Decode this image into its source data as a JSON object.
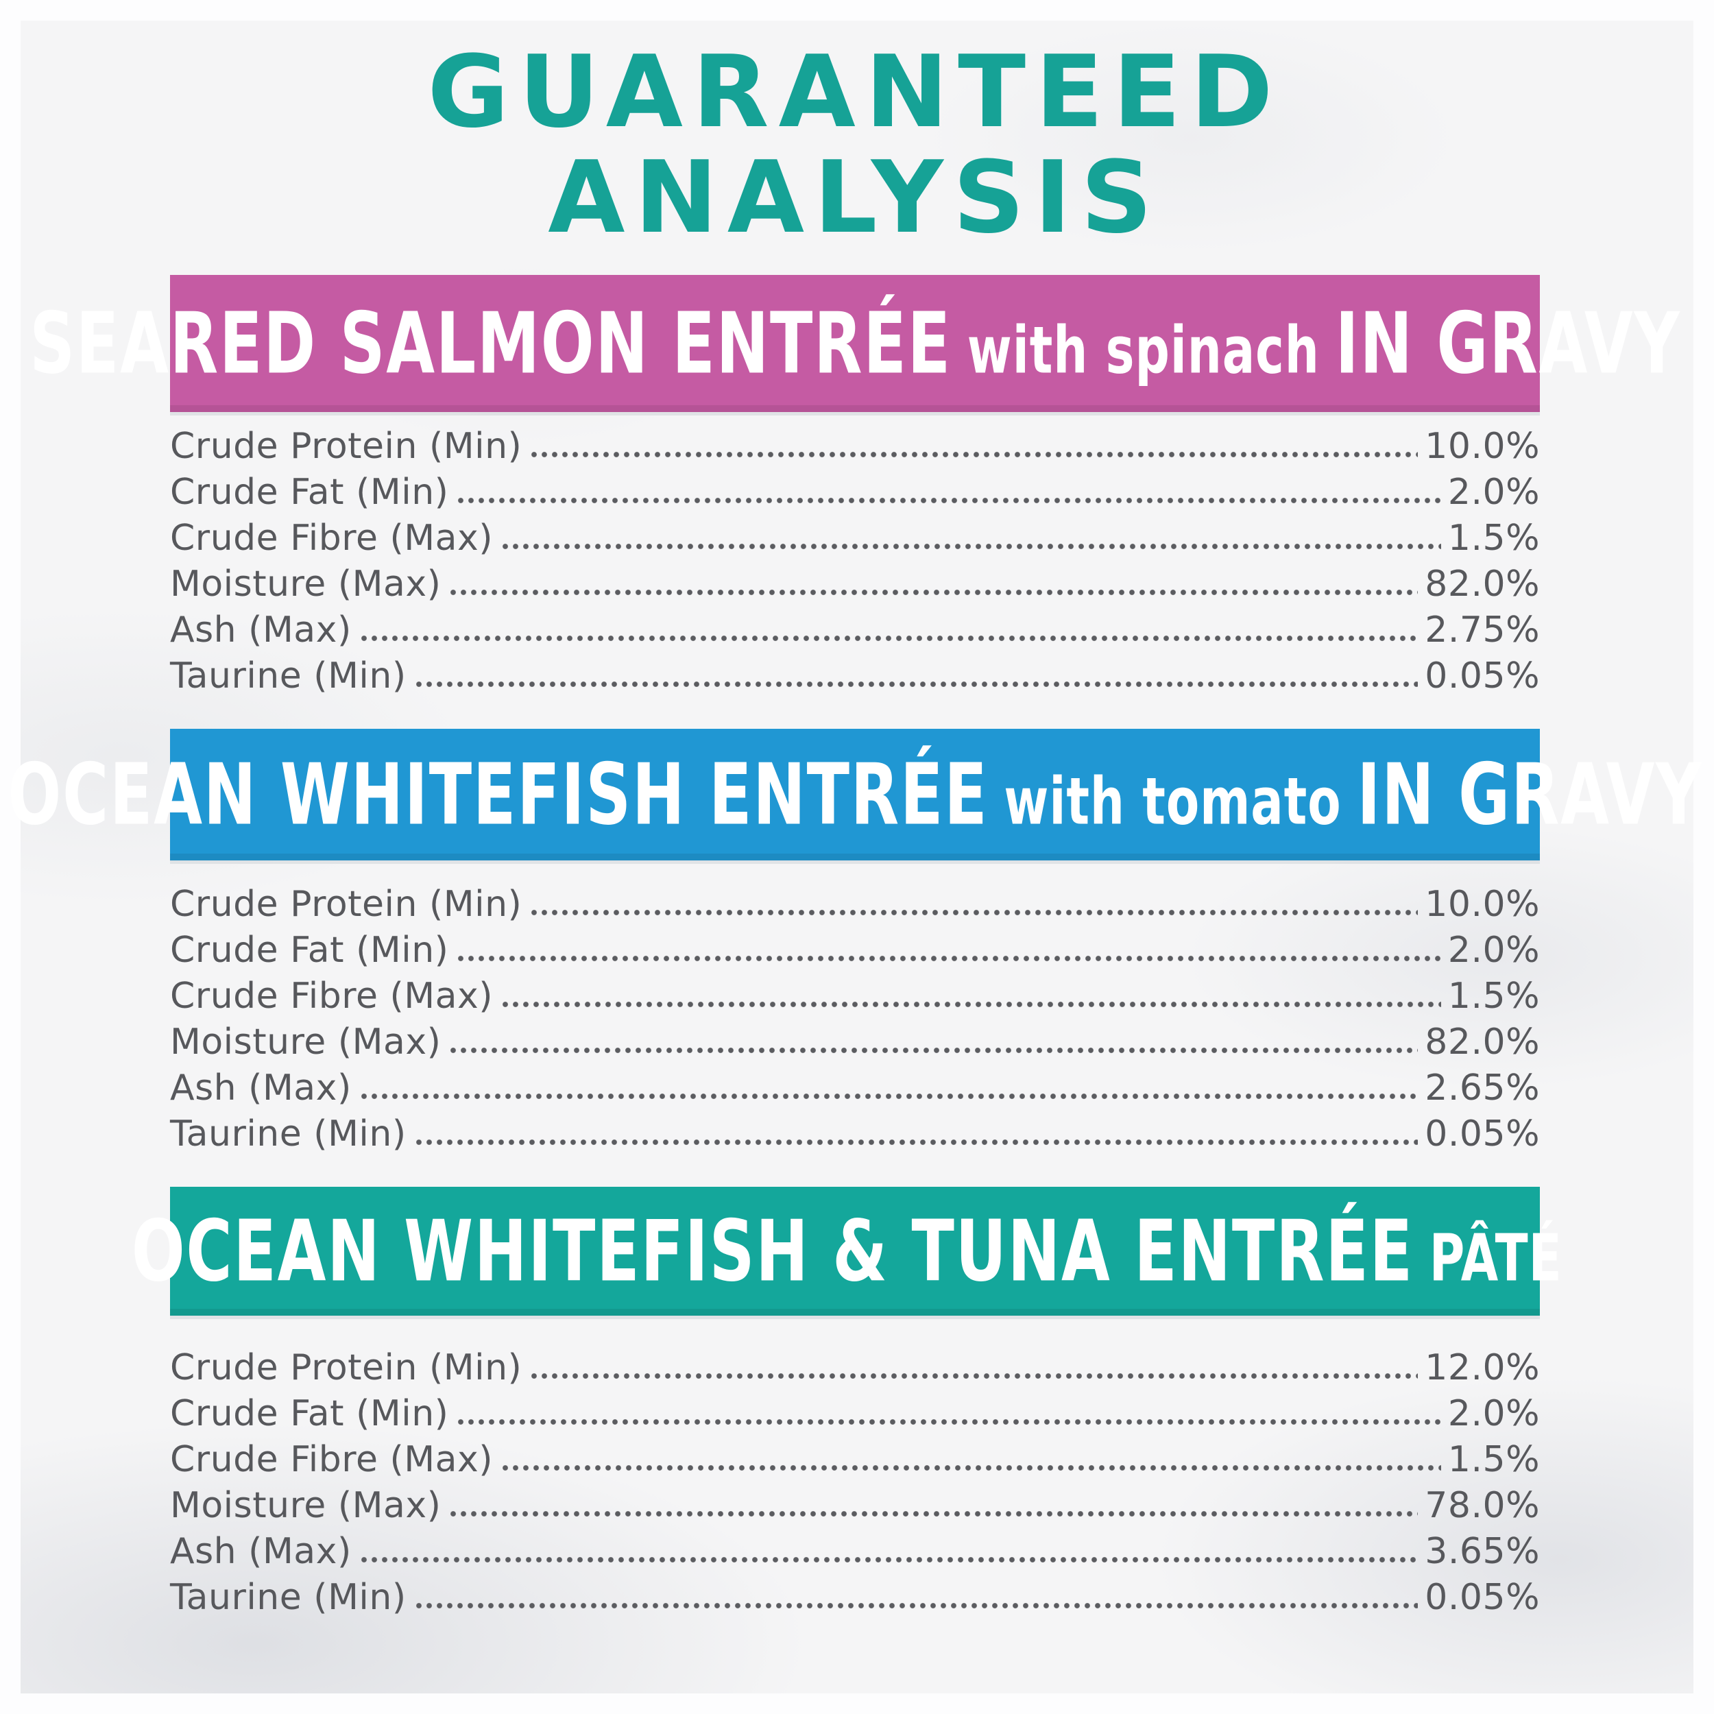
{
  "title": {
    "line1": "GUARANTEED",
    "line2": "ANALYSIS"
  },
  "colors": {
    "title_teal": "#16a296",
    "banner_pink": "#c55ba3",
    "banner_blue": "#2097d3",
    "banner_teal": "#14a79b",
    "row_text": "#57585c",
    "background": "#f5f5f6"
  },
  "sections": [
    {
      "banner": {
        "main_left": "SEARED SALMON ENTRÉE",
        "subtitle": "with spinach",
        "main_right": "IN GRAVY",
        "color": "#c55ba3"
      },
      "rows": [
        {
          "label": "Crude Protein (Min)",
          "value": "10.0%"
        },
        {
          "label": "Crude Fat (Min)",
          "value": "2.0%"
        },
        {
          "label": "Crude Fibre (Max)",
          "value": "1.5%"
        },
        {
          "label": "Moisture (Max)",
          "value": "82.0%"
        },
        {
          "label": "Ash (Max)",
          "value": "2.75%"
        },
        {
          "label": "Taurine (Min)",
          "value": "0.05%"
        }
      ]
    },
    {
      "banner": {
        "main_left": "OCEAN WHITEFISH ENTRÉE",
        "subtitle": "with tomato",
        "main_right": "IN GRAVY",
        "color": "#2097d3"
      },
      "rows": [
        {
          "label": "Crude Protein (Min)",
          "value": "10.0%"
        },
        {
          "label": "Crude Fat (Min)",
          "value": "2.0%"
        },
        {
          "label": "Crude Fibre (Max)",
          "value": "1.5%"
        },
        {
          "label": "Moisture (Max)",
          "value": "82.0%"
        },
        {
          "label": "Ash (Max)",
          "value": "2.65%"
        },
        {
          "label": "Taurine (Min)",
          "value": "0.05%"
        }
      ]
    },
    {
      "banner": {
        "main_left": "OCEAN WHITEFISH & TUNA ENTRÉE",
        "subtitle": "PÂTÉ",
        "main_right": "",
        "color": "#14a79b"
      },
      "rows": [
        {
          "label": "Crude Protein (Min)",
          "value": "12.0%"
        },
        {
          "label": "Crude Fat (Min)",
          "value": "2.0%"
        },
        {
          "label": "Crude Fibre (Max)",
          "value": "1.5%"
        },
        {
          "label": "Moisture (Max)",
          "value": "78.0%"
        },
        {
          "label": "Ash (Max)",
          "value": "3.65%"
        },
        {
          "label": "Taurine (Min)",
          "value": "0.05%"
        }
      ]
    }
  ]
}
